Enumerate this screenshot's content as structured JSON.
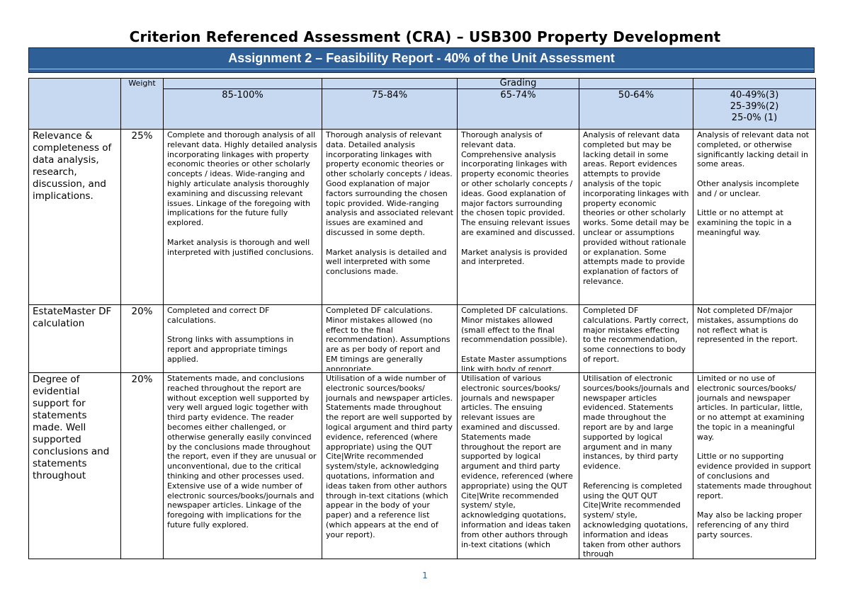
{
  "document": {
    "title": "Criterion Referenced Assessment (CRA) – USB300 Property Development",
    "banner": "Assignment 2 – Feasibility Report - 40% of the Unit Assessment",
    "page_number": "1"
  },
  "rubric": {
    "grading_label": "Grading",
    "weight_label": "Weight",
    "grades": [
      [
        "85-100%"
      ],
      [
        "75-84%"
      ],
      [
        "65-74%"
      ],
      [
        "50-64%"
      ],
      [
        "40-49%(3)",
        "25-39%(2)",
        "25-0% (1)"
      ]
    ],
    "criteria": [
      {
        "name": "Relevance & completeness of data analysis, research, discussion, and implications.",
        "weight": "25%",
        "descriptors": [
          [
            "Complete and thorough analysis of all relevant data. Highly detailed analysis incorporating linkages with property economic theories or other scholarly concepts / ideas. Wide-ranging and highly articulate analysis thoroughly examining and discussing relevant issues. Linkage of the foregoing with implications for the future fully explored.",
            "Market analysis is thorough and well interpreted with justified conclusions."
          ],
          [
            "Thorough analysis of relevant data. Detailed analysis incorporating linkages with property economic theories or other scholarly concepts / ideas. Good explanation of major factors surrounding the chosen topic provided. Wide-ranging analysis and associated relevant issues are examined and discussed in some depth.",
            "Market analysis is detailed and well interpreted with some conclusions made."
          ],
          [
            "Thorough analysis of relevant data. Comprehensive analysis incorporating linkages with property economic theories or other scholarly concepts / ideas. Good explanation of major factors surrounding the chosen topic provided. The ensuing relevant issues are examined and discussed.",
            "Market analysis is provided and interpreted."
          ],
          [
            "Analysis of relevant data completed but may be lacking detail in some areas. Report evidences attempts to provide analysis of the topic incorporating linkages with property economic theories or other scholarly works. Some detail may be unclear or assumptions provided without rationale or explanation. Some attempts made to provide explanation of factors of relevance."
          ],
          [
            "Analysis of relevant data not completed, or otherwise significantly lacking detail in some areas.",
            "Other analysis incomplete and / or unclear.",
            "Little or no attempt at examining the topic in a meaningful way."
          ]
        ]
      },
      {
        "name": "EstateMaster DF calculation",
        "weight": "20%",
        "descriptors": [
          [
            "Completed and correct DF calculations.",
            "Strong links with assumptions in report and appropriate timings applied."
          ],
          [
            "Completed DF calculations. Minor mistakes allowed (no effect to the final recommendation). Assumptions are as per body of report and EM timings are generally appropriate."
          ],
          [
            "Completed DF calculations. Minor mistakes allowed (small effect to the final recommendation possible).",
            "Estate Master assumptions link with body of report."
          ],
          [
            "Completed DF calculations. Partly correct, major mistakes effecting to the recommendation, some connections to body of report."
          ],
          [
            "Not completed DF/major mistakes, assumptions do not reflect what is represented in the report."
          ]
        ]
      },
      {
        "name": "Degree of evidential support for statements made. Well supported conclusions and statements throughout",
        "weight": "20%",
        "descriptors": [
          [
            "Statements made, and conclusions reached throughout the report are without exception well supported by very well argued logic together with third party evidence. The reader becomes either challenged, or otherwise generally easily convinced by the conclusions made throughout the report, even if they are unusual or unconventional, due to the critical thinking and other processes used. Extensive use of a wide number of electronic sources/books/journals and newspaper articles. Linkage of the foregoing with implications for the future fully explored."
          ],
          [
            "Utilisation of a wide number of electronic sources/books/ journals and newspaper articles. Statements made throughout the report are well supported by logical argument and third party evidence, referenced (where appropriate) using the QUT Cite|Write recommended system/style, acknowledging quotations, information and ideas taken from other authors through in-text citations (which appear in the body of your paper) and a reference list (which appears at the end of your report)."
          ],
          [
            "Utilisation of various electronic sources/books/ journals and newspaper articles. The ensuing relevant issues are examined and discussed. Statements made throughout the report are supported by logical argument and third party evidence, referenced (where appropriate) using the QUT Cite|Write recommended system/ style, acknowledging quotations, information and ideas taken from other authors through in-text citations (which"
          ],
          [
            "Utilisation of electronic sources/books/journals and newspaper articles evidenced. Statements made throughout the report are by and large supported by logical argument and in many instances, by third party evidence.",
            "Referencing is completed using the QUT QUT Cite|Write recommended system/ style, acknowledging quotations, information and ideas taken from other authors through"
          ],
          [
            "Limited or no use of electronic sources/books/ journals and newspaper articles. In particular, little, or no attempt at examining the topic in a meaningful way.",
            "Little or no supporting evidence provided in support of conclusions and statements made throughout report.",
            "May also be lacking proper referencing of any third party sources."
          ]
        ]
      }
    ]
  }
}
